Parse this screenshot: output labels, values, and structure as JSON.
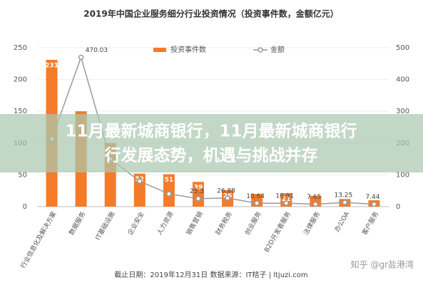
{
  "chart_data": {
    "type": "bar_line",
    "title": "2019年中国企业服务细分行业投资情况（投资事件数，金额亿元）",
    "categories": [
      "行业信息化及解决方案",
      "数据服务",
      "IT基础设施",
      "企业安全",
      "人力资源",
      "销售营销",
      "财务税务",
      "创业服务",
      "B2D开发者服务",
      "法律服务",
      "办公OA",
      "客户服务"
    ],
    "series": [
      {
        "name": "投资事件数",
        "color": "#f47b2a",
        "type": "bar",
        "values": [
          231,
          150,
          100,
          52,
          51,
          39,
          26,
          20,
          21,
          17,
          12,
          10
        ],
        "value_labels": [
          "231",
          null,
          null,
          "52",
          "51",
          "39",
          "26",
          null,
          "21",
          null,
          null,
          null
        ]
      },
      {
        "name": "金额",
        "color": "#9a9a9a",
        "type": "line",
        "axis": "y2",
        "values": [
          213,
          470.03,
          150,
          80,
          40,
          25.3,
          26.88,
          10.64,
          10.91,
          7.65,
          13.25,
          7.44
        ],
        "value_labels": [
          null,
          "470.03",
          null,
          null,
          null,
          "25.3",
          "26.88",
          "10.64",
          "10.91",
          "7.65",
          "13.25",
          "7.44"
        ]
      }
    ],
    "ylim": [
      0,
      250
    ],
    "yticks": [
      0,
      50,
      100,
      150,
      200,
      250
    ],
    "y2lim": [
      0,
      500
    ],
    "y2ticks": [
      0,
      100,
      200,
      300,
      400,
      500
    ],
    "source": "截止日期：2019年12月31日   数据来源：IT桔子 | ltjuzi.com"
  },
  "overlay_title": [
    "11月最新城商银行，11月最新城商银行",
    "行发展态势，机遇与挑战并存"
  ],
  "watermark": "知乎 @gr盐港湾"
}
